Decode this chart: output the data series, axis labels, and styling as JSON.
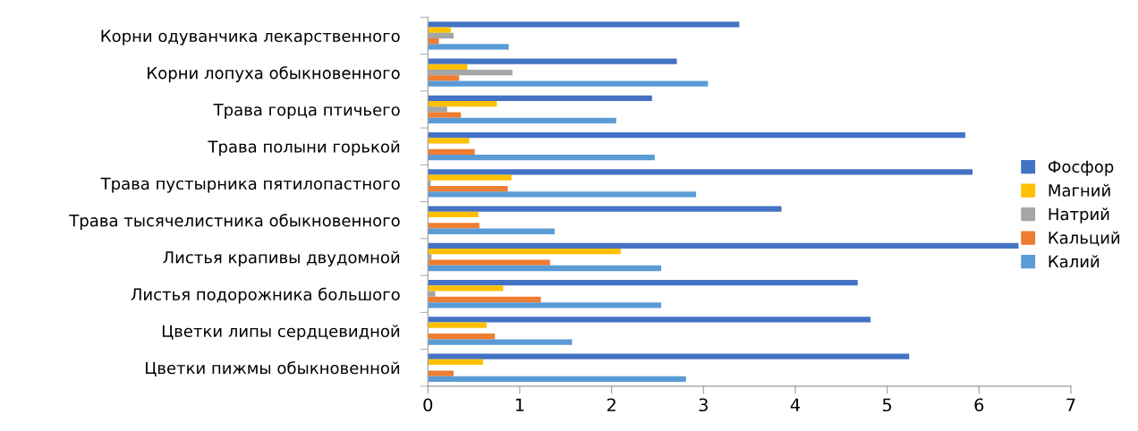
{
  "chart_data": {
    "type": "bar",
    "orientation": "horizontal",
    "categories": [
      "Корни одуванчика лекарственного",
      "Корни лопуха обыкновенного",
      "Трава горца птичьего",
      "Трава полыни горькой",
      "Трава пустырника пятилопастного",
      "Трава тысячелистника обыкновенного",
      "Листья крапивы двудомной",
      "Листья подорожника большого",
      "Цветки липы сердцевидной",
      "Цветки пижмы обыкновенной"
    ],
    "series": [
      {
        "name": "Фосфор",
        "color": "#4472c4",
        "values": [
          3.39,
          2.71,
          2.44,
          5.85,
          5.93,
          3.85,
          6.43,
          4.68,
          4.82,
          5.24
        ]
      },
      {
        "name": "Магний",
        "color": "#ffc000",
        "values": [
          0.25,
          0.43,
          0.75,
          0.45,
          0.91,
          0.55,
          2.1,
          0.82,
          0.64,
          0.6
        ]
      },
      {
        "name": "Натрий",
        "color": "#a5a5a5",
        "values": [
          0.28,
          0.92,
          0.21,
          null,
          0.03,
          null,
          0.04,
          0.08,
          0,
          0
        ]
      },
      {
        "name": "Кальций",
        "color": "#ed7d31",
        "values": [
          0.12,
          0.34,
          0.36,
          0.51,
          0.87,
          0.56,
          1.33,
          1.23,
          0.73,
          0.28
        ]
      },
      {
        "name": "Калий",
        "color": "#5b9bd5",
        "values": [
          0.88,
          3.05,
          2.05,
          2.47,
          2.92,
          1.38,
          2.54,
          2.54,
          1.57,
          2.81
        ]
      }
    ],
    "xlim": [
      0,
      7
    ],
    "xticks": [
      0,
      1,
      2,
      3,
      4,
      5,
      6,
      7
    ],
    "grid": false,
    "legend": "right"
  }
}
